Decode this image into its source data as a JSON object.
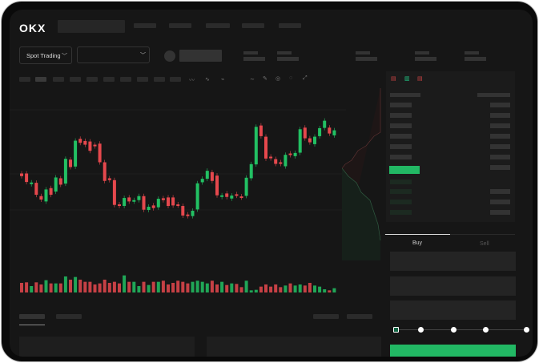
{
  "brand": {
    "logo": "OKX"
  },
  "toolbar": {
    "market_select": "Spot Trading",
    "pair_select": ""
  },
  "trade": {
    "tabs": [
      {
        "label": "Buy",
        "active": true
      },
      {
        "label": "Sell",
        "active": false
      }
    ],
    "slider_percent": 0
  },
  "colors": {
    "up": "#22c063",
    "down": "#e5484d",
    "background": "#161616",
    "accent": "#22b864"
  },
  "icons": [
    "chevron-down-icon",
    "indicator-icon",
    "candle-type-icon",
    "draw-line-icon",
    "pencil-icon",
    "circle-icon",
    "target-icon",
    "expand-icon",
    "orderbook-both-icon",
    "orderbook-buy-icon",
    "orderbook-sell-icon"
  ],
  "chart_data": {
    "type": "candlestick",
    "ylim": [
      30,
      430
    ],
    "candles": [
      [
        200,
        190
      ],
      [
        200,
        168
      ],
      [
        160,
        166
      ],
      [
        165,
        120
      ],
      [
        115,
        102
      ],
      [
        95,
        140
      ],
      [
        145,
        120
      ],
      [
        132,
        185
      ],
      [
        182,
        158
      ],
      [
        162,
        255
      ],
      [
        252,
        224
      ],
      [
        226,
        323
      ],
      [
        330,
        315
      ],
      [
        322,
        308
      ],
      [
        320,
        285
      ],
      [
        308,
        302
      ],
      [
        312,
        242
      ],
      [
        242,
        172
      ],
      [
        182,
        175
      ],
      [
        175,
        82
      ],
      [
        84,
        78
      ],
      [
        78,
        108
      ],
      [
        110,
        95
      ],
      [
        95,
        100
      ],
      [
        100,
        115
      ],
      [
        115,
        64
      ],
      [
        63,
        75
      ],
      [
        80,
        70
      ],
      [
        73,
        105
      ],
      [
        107,
        100
      ],
      [
        110,
        78
      ],
      [
        110,
        80
      ],
      [
        84,
        80
      ],
      [
        78,
        42
      ],
      [
        46,
        40
      ],
      [
        40,
        60
      ],
      [
        65,
        163
      ],
      [
        167,
        180
      ],
      [
        180,
        210
      ],
      [
        205,
        172
      ],
      [
        192,
        118
      ],
      [
        112,
        118
      ],
      [
        125,
        112
      ],
      [
        106,
        117
      ],
      [
        122,
        117
      ],
      [
        114,
        110
      ],
      [
        116,
        184
      ],
      [
        182,
        235
      ],
      [
        234,
        375
      ],
      [
        380,
        340
      ],
      [
        338,
        256
      ],
      [
        263,
        257
      ],
      [
        254,
        236
      ],
      [
        242,
        236
      ],
      [
        227,
        270
      ],
      [
        275,
        269
      ],
      [
        265,
        277
      ],
      [
        278,
        366
      ],
      [
        372,
        332
      ],
      [
        332,
        317
      ],
      [
        310,
        338
      ],
      [
        340,
        370
      ],
      [
        371,
        398
      ],
      [
        372,
        350
      ],
      [
        343,
        362
      ]
    ],
    "volume": [
      36,
      38,
      24,
      38,
      30,
      46,
      34,
      34,
      34,
      60,
      48,
      58,
      48,
      40,
      40,
      30,
      34,
      48,
      36,
      40,
      34,
      64,
      40,
      40,
      24,
      40,
      28,
      40,
      40,
      44,
      30,
      36,
      44,
      40,
      34,
      40,
      44,
      40,
      34,
      44,
      30,
      40,
      28,
      34,
      32,
      20,
      44,
      8,
      10,
      22,
      30,
      22,
      30,
      20,
      26,
      34,
      26,
      30,
      26,
      36,
      26,
      22,
      12,
      8,
      16
    ]
  }
}
